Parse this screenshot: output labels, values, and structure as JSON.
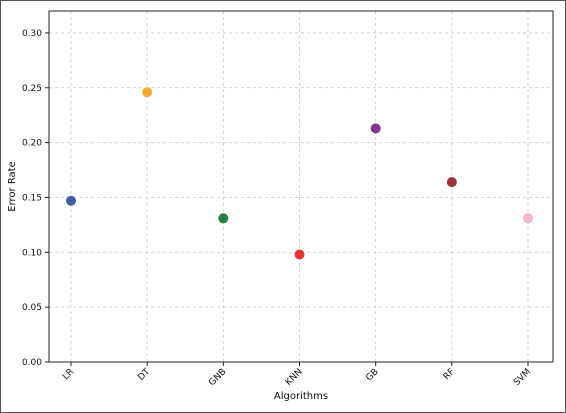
{
  "chart_data": {
    "type": "scatter",
    "title": "",
    "xlabel": "Algorithms",
    "ylabel": "Error Rate",
    "categories": [
      "LR",
      "DT",
      "GNB",
      "KNN",
      "GB",
      "RF",
      "SVM"
    ],
    "values": [
      0.147,
      0.246,
      0.131,
      0.098,
      0.213,
      0.164,
      0.131
    ],
    "point_colors": [
      "#3a55a4",
      "#f5a623",
      "#1e7a3a",
      "#e8282a",
      "#7b2a8c",
      "#9a2a2a",
      "#f2b6c6"
    ],
    "ylim": [
      0.0,
      0.32
    ],
    "yticks": [
      0.0,
      0.05,
      0.1,
      0.15,
      0.2,
      0.25,
      0.3
    ],
    "ytick_labels": [
      "0.00",
      "0.05",
      "0.10",
      "0.15",
      "0.20",
      "0.25",
      "0.30"
    ],
    "grid": true,
    "legend": "none"
  }
}
